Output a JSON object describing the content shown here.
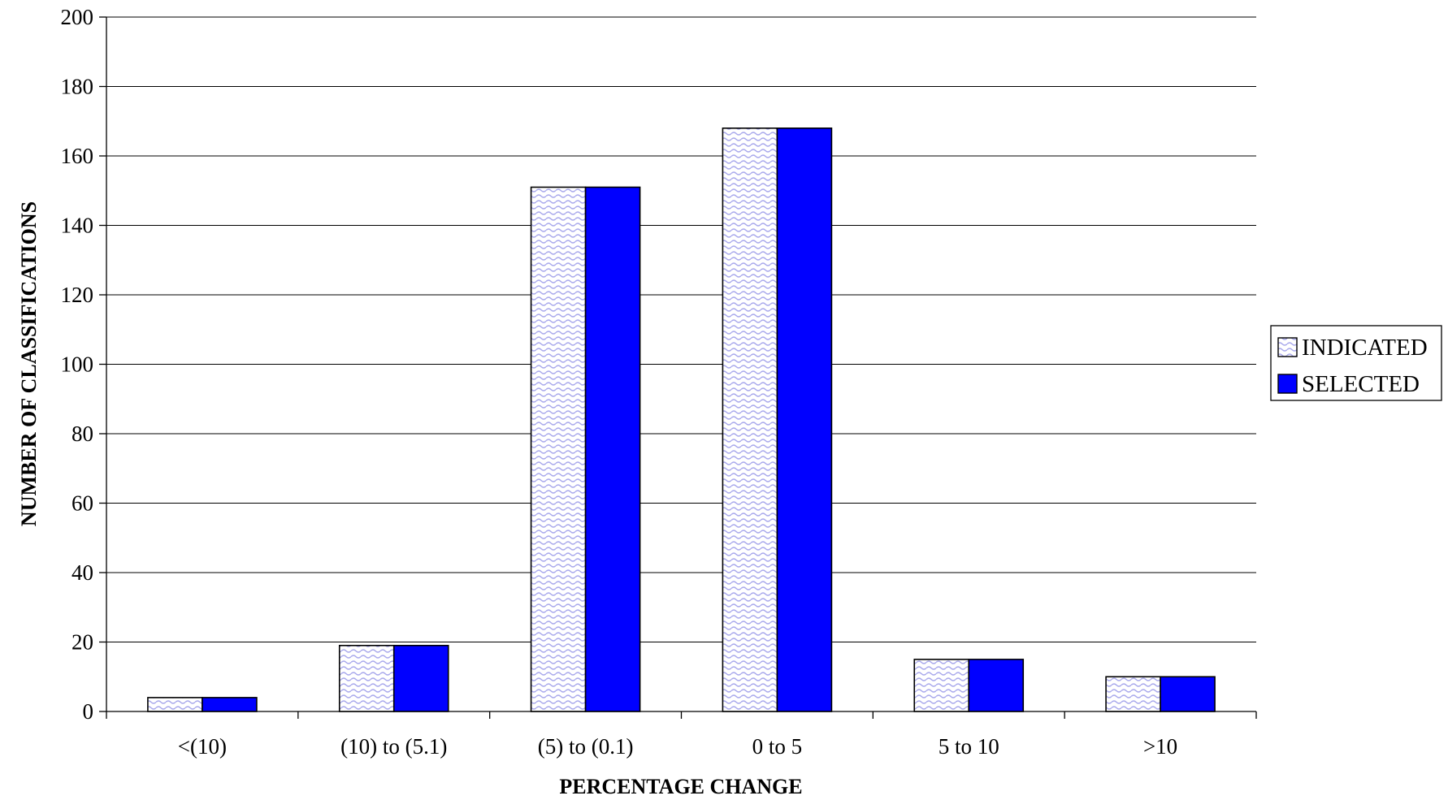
{
  "chart_data": {
    "type": "bar",
    "title": "",
    "xlabel": "PERCENTAGE CHANGE",
    "ylabel": "NUMBER OF CLASSIFICATIONS",
    "categories": [
      "<(10)",
      "(10) to (5.1)",
      "(5) to (0.1)",
      "0 to 5",
      "5 to 10",
      ">10"
    ],
    "series": [
      {
        "name": "INDICATED",
        "values": [
          4,
          19,
          151,
          168,
          15,
          10
        ],
        "color": "#b4b4f0",
        "pattern": "wavy"
      },
      {
        "name": "SELECTED",
        "values": [
          4,
          19,
          151,
          168,
          15,
          10
        ],
        "color": "#0000ff",
        "pattern": "solid"
      }
    ],
    "ylim": [
      0,
      200
    ],
    "yticks": [
      0,
      20,
      40,
      60,
      80,
      100,
      120,
      140,
      160,
      180,
      200
    ],
    "grid": true,
    "legend_position": "right"
  }
}
